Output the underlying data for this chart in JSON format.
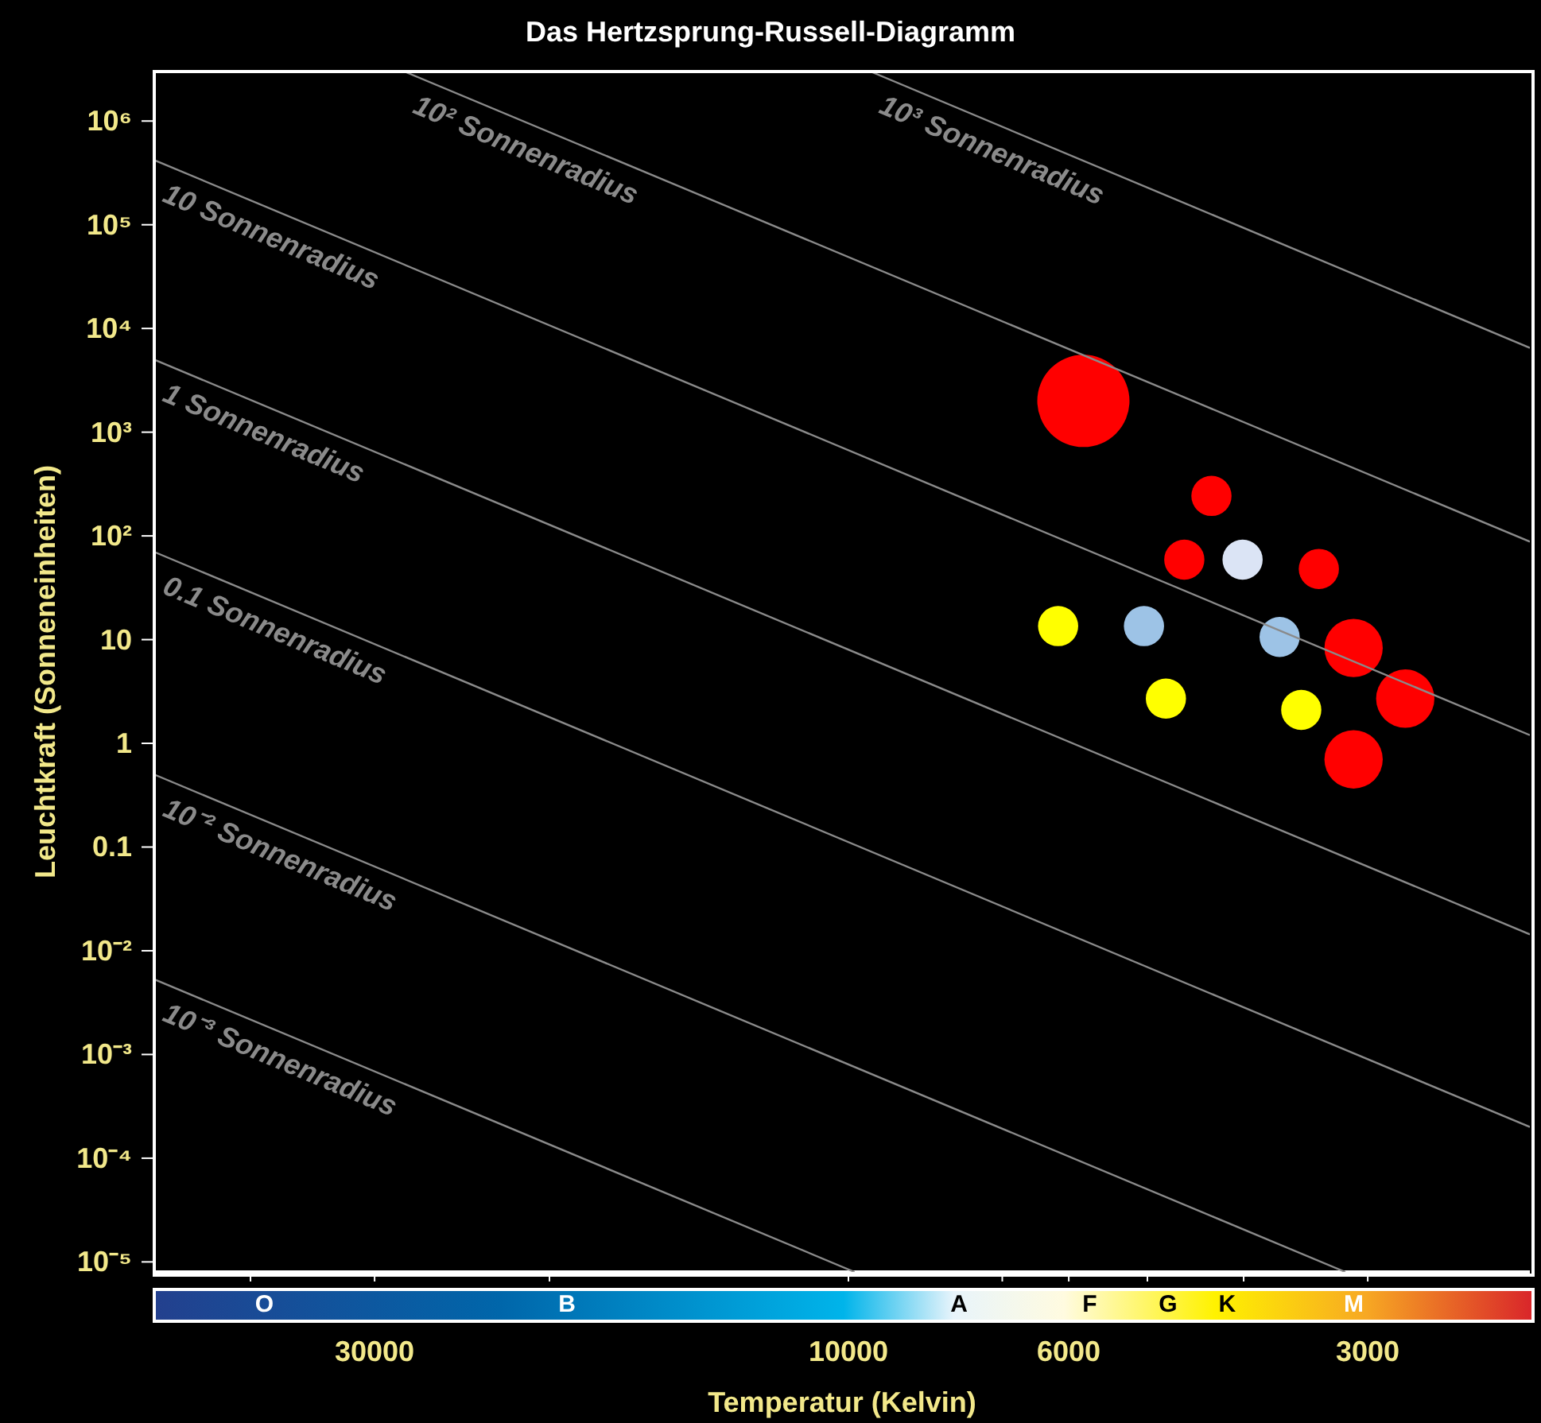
{
  "chart_data": {
    "type": "bubble",
    "title": "Das Hertzsprung-Russell-Diagramm",
    "xlabel": "Temperatur (Kelvin)",
    "ylabel": "Leuchtkraft (Sonneneinheiten)",
    "log": "xy",
    "xlim": [
      50000,
      2060
    ],
    "ylim": [
      8e-06,
      3000000
    ],
    "xticks": [
      {
        "value": 40000,
        "label": null
      },
      30000,
      {
        "value": 20000,
        "label": null
      },
      10000,
      {
        "value": 7000,
        "label": null
      },
      6000,
      {
        "value": 5000,
        "label": null
      },
      {
        "value": 4000,
        "label": null
      },
      3000
    ],
    "yticks": [
      {
        "value": 1e-05,
        "label": "10⁻⁵"
      },
      {
        "value": 0.0001,
        "label": "10⁻⁴"
      },
      {
        "value": 0.001,
        "label": "10⁻³"
      },
      {
        "value": 0.01,
        "label": "10⁻²"
      },
      0.1,
      1,
      10,
      {
        "value": 100,
        "label": "10²"
      },
      {
        "value": 1000,
        "label": "10³"
      },
      {
        "value": 10000,
        "label": "10⁴"
      },
      {
        "value": 100000,
        "label": "10⁵"
      },
      {
        "value": 1000000,
        "label": "10⁶"
      }
    ],
    "series": [
      {
        "x": [
          5800,
          4310,
          4590,
          4010,
          3360,
          6150,
          5040,
          3680,
          3100,
          2750,
          4790,
          3500,
          3100
        ],
        "values": [
          2000,
          243,
          59,
          59,
          48,
          13.5,
          13.5,
          10.6,
          8.3,
          2.7,
          2.7,
          2.1,
          0.7
        ],
        "sizes": [
          1,
          0.19,
          0.19,
          0.19,
          0.19,
          0.19,
          0.19,
          0.19,
          0.4,
          0.4,
          0.19,
          0.19,
          0.4
        ],
        "colors": [
          "#ff0000",
          "#ff0000",
          "#ff0000",
          "#dbe4f5",
          "#ff0000",
          "#ffff00",
          "#9dc3e6",
          "#9dc3e6",
          "#ff0000",
          "#ff0000",
          "#ffff00",
          "#ffff00",
          "#ff0000"
        ]
      },
      {
        "type": "line",
        "name": "10³ Sonnenradius",
        "color": "#8a8a8a",
        "x": [
          9500,
          2060
        ],
        "values": [
          3000000,
          6500
        ]
      },
      {
        "type": "line",
        "name": "10² Sonnenradius",
        "color": "#8a8a8a",
        "x": [
          28000,
          2060
        ],
        "values": [
          3000000,
          88
        ]
      },
      {
        "type": "line",
        "name": "10 Sonnenradius",
        "color": "#8a8a8a",
        "x": [
          50000,
          2060
        ],
        "values": [
          420000,
          1.2
        ]
      },
      {
        "type": "line",
        "name": "1 Sonnenradius",
        "color": "#8a8a8a",
        "x": [
          50000,
          2060
        ],
        "values": [
          5000,
          0.0144
        ]
      },
      {
        "type": "line",
        "name": "0.1 Sonnenradius",
        "color": "#8a8a8a",
        "x": [
          50000,
          2060
        ],
        "values": [
          70,
          0.0002
        ]
      },
      {
        "type": "line",
        "name": "10⁻² Sonnenradius",
        "color": "#8a8a8a",
        "x": [
          50000,
          3160
        ],
        "values": [
          0.5,
          8e-06
        ]
      },
      {
        "type": "line",
        "name": "10⁻³ Sonnenradius",
        "color": "#8a8a8a",
        "x": [
          50000,
          9860
        ],
        "values": [
          0.0053,
          8e-06
        ]
      }
    ],
    "annotations": [
      "O",
      "B",
      "A",
      "F",
      "G",
      "K",
      "M"
    ]
  }
}
